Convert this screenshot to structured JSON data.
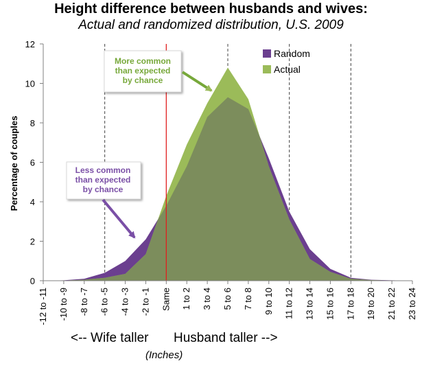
{
  "chart_data": {
    "type": "area",
    "title": "Height difference between husbands and wives:",
    "subtitle": "Actual and randomized distribution, U.S. 2009",
    "xlabel": "",
    "ylabel": "Percentage of couples",
    "ylim": [
      0,
      12
    ],
    "yticks": [
      0,
      2,
      4,
      6,
      8,
      10,
      12
    ],
    "categories": [
      "-12 to -11",
      "-10 to -9",
      "-8 to -7",
      "-6 to -5",
      "-4 to -3",
      "-2 to -1",
      "Same",
      "1 to 2",
      "3 to 4",
      "5 to 6",
      "7 to 8",
      "9 to 10",
      "11 to 12",
      "13 to 14",
      "15 to 16",
      "17 to 18",
      "19 to 20",
      "21 to 22",
      "23 to 24"
    ],
    "series": [
      {
        "name": "Random",
        "color": "#6b3f8f",
        "values": [
          0,
          0.02,
          0.1,
          0.4,
          1.0,
          2.1,
          3.8,
          5.8,
          8.3,
          9.3,
          8.7,
          6.2,
          3.5,
          1.6,
          0.6,
          0.15,
          0.05,
          0.02,
          0
        ]
      },
      {
        "name": "Actual",
        "color": "#9bbb59",
        "values": [
          0,
          0.01,
          0.05,
          0.15,
          0.35,
          1.35,
          4.3,
          6.9,
          9.0,
          10.8,
          9.2,
          5.8,
          3.1,
          1.1,
          0.45,
          0.1,
          0.03,
          0.01,
          0
        ]
      }
    ],
    "overlap_color": "#7c8d5c",
    "legend": {
      "placement": "top-right"
    },
    "grid": {
      "vertical_dashed_at": [
        "-6 to -5",
        "5 to 6",
        "11 to 12",
        "17 to 18"
      ]
    },
    "reference_line": {
      "at": "Same",
      "color": "#e02020"
    },
    "annotations": [
      {
        "id": "more",
        "lines": [
          "More common",
          "than expected",
          "by chance"
        ],
        "color": "#77a83a",
        "points_to": "Actual"
      },
      {
        "id": "less",
        "lines": [
          "Less common",
          "than expected",
          "by chance"
        ],
        "color": "#7a4fa6",
        "points_to": "Random"
      }
    ]
  },
  "footer": {
    "left_direction": "<-- Wife taller",
    "right_direction": "Husband taller -->",
    "units": "(Inches)"
  }
}
